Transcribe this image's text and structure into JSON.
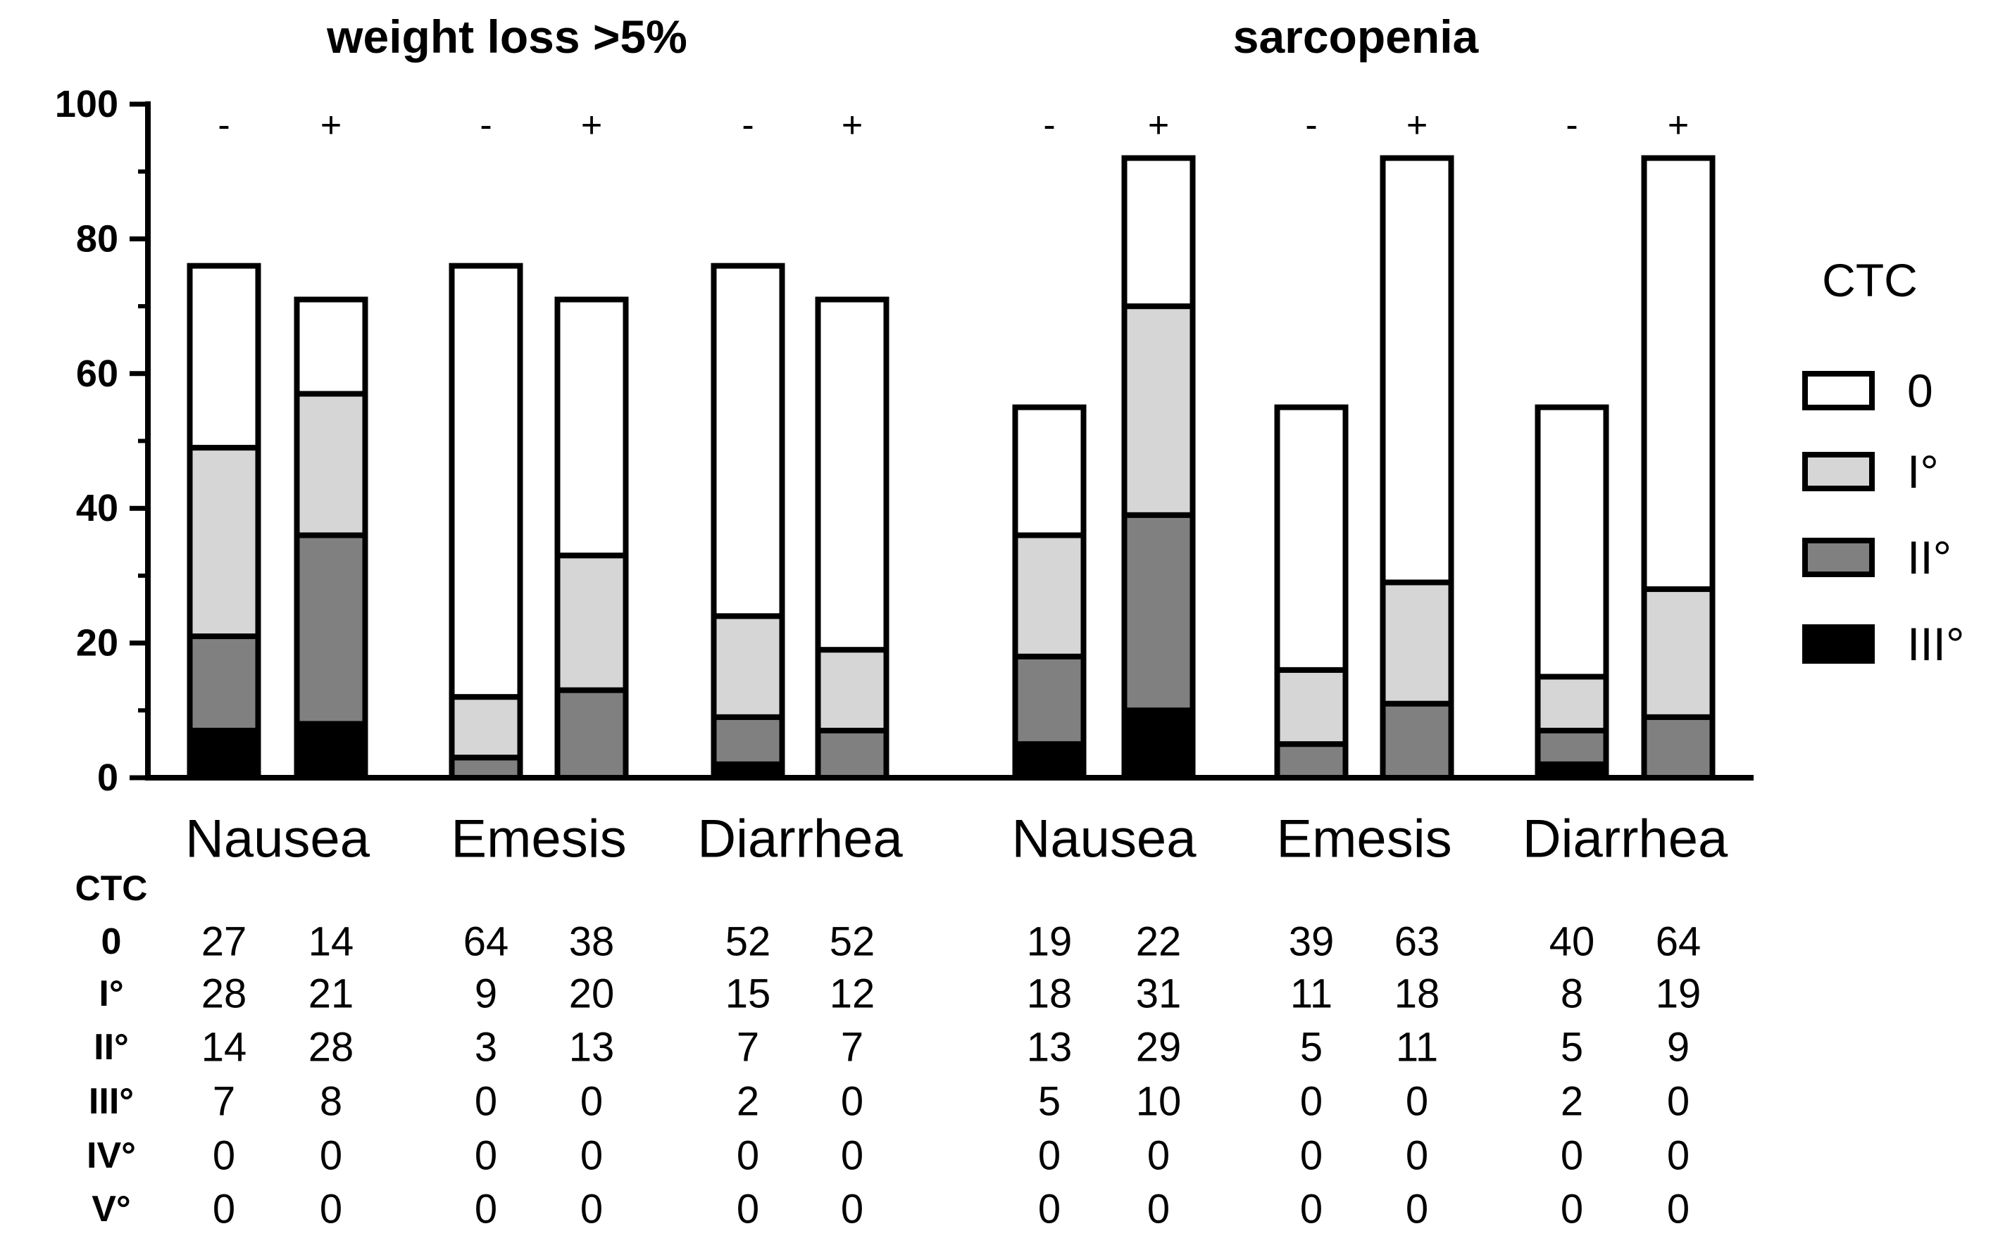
{
  "chart_data": {
    "type": "bar",
    "stacked": true,
    "panels": [
      {
        "title": "weight loss >5%",
        "groups": [
          {
            "category": "Nausea",
            "bars": [
              {
                "label": "-",
                "values": {
                  "0": 27,
                  "I°": 28,
                  "II°": 14,
                  "III°": 7,
                  "IV°": 0,
                  "V°": 0
                }
              },
              {
                "label": "+",
                "values": {
                  "0": 14,
                  "I°": 21,
                  "II°": 28,
                  "III°": 8,
                  "IV°": 0,
                  "V°": 0
                }
              }
            ]
          },
          {
            "category": "Emesis",
            "bars": [
              {
                "label": "-",
                "values": {
                  "0": 64,
                  "I°": 9,
                  "II°": 3,
                  "III°": 0,
                  "IV°": 0,
                  "V°": 0
                }
              },
              {
                "label": "+",
                "values": {
                  "0": 38,
                  "I°": 20,
                  "II°": 13,
                  "III°": 0,
                  "IV°": 0,
                  "V°": 0
                }
              }
            ]
          },
          {
            "category": "Diarrhea",
            "bars": [
              {
                "label": "-",
                "values": {
                  "0": 52,
                  "I°": 15,
                  "II°": 7,
                  "III°": 2,
                  "IV°": 0,
                  "V°": 0
                }
              },
              {
                "label": "+",
                "values": {
                  "0": 52,
                  "I°": 12,
                  "II°": 7,
                  "III°": 0,
                  "IV°": 0,
                  "V°": 0
                }
              }
            ]
          }
        ]
      },
      {
        "title": "sarcopenia",
        "groups": [
          {
            "category": "Nausea",
            "bars": [
              {
                "label": "-",
                "values": {
                  "0": 19,
                  "I°": 18,
                  "II°": 13,
                  "III°": 5,
                  "IV°": 0,
                  "V°": 0
                }
              },
              {
                "label": "+",
                "values": {
                  "0": 22,
                  "I°": 31,
                  "II°": 29,
                  "III°": 10,
                  "IV°": 0,
                  "V°": 0
                }
              }
            ]
          },
          {
            "category": "Emesis",
            "bars": [
              {
                "label": "-",
                "values": {
                  "0": 39,
                  "I°": 11,
                  "II°": 5,
                  "III°": 0,
                  "IV°": 0,
                  "V°": 0
                }
              },
              {
                "label": "+",
                "values": {
                  "0": 63,
                  "I°": 18,
                  "II°": 11,
                  "III°": 0,
                  "IV°": 0,
                  "V°": 0
                }
              }
            ]
          },
          {
            "category": "Diarrhea",
            "bars": [
              {
                "label": "-",
                "values": {
                  "0": 40,
                  "I°": 8,
                  "II°": 5,
                  "III°": 2,
                  "IV°": 0,
                  "V°": 0
                }
              },
              {
                "label": "+",
                "values": {
                  "0": 64,
                  "I°": 19,
                  "II°": 9,
                  "III°": 0,
                  "IV°": 0,
                  "V°": 0
                }
              }
            ]
          }
        ]
      }
    ],
    "stack_order": [
      "III°",
      "II°",
      "I°",
      "0"
    ],
    "ylim": [
      0,
      100
    ],
    "yticks": [
      "0",
      "20",
      "40",
      "60",
      "80",
      "100"
    ],
    "grid": false,
    "legend": {
      "title": "CTC",
      "position": "right",
      "entries": [
        {
          "key": "0",
          "label": "0",
          "color": "#ffffff"
        },
        {
          "key": "I°",
          "label": "I°",
          "color": "#d6d6d6"
        },
        {
          "key": "II°",
          "label": "II°",
          "color": "#808080"
        },
        {
          "key": "III°",
          "label": "III°",
          "color": "#000000"
        }
      ]
    },
    "table": {
      "header": "CTC",
      "row_labels": [
        "0",
        "I°",
        "II°",
        "III°",
        "IV°",
        "V°"
      ],
      "row_keys": [
        "0",
        "I°",
        "II°",
        "III°",
        "IV°",
        "V°"
      ]
    }
  }
}
